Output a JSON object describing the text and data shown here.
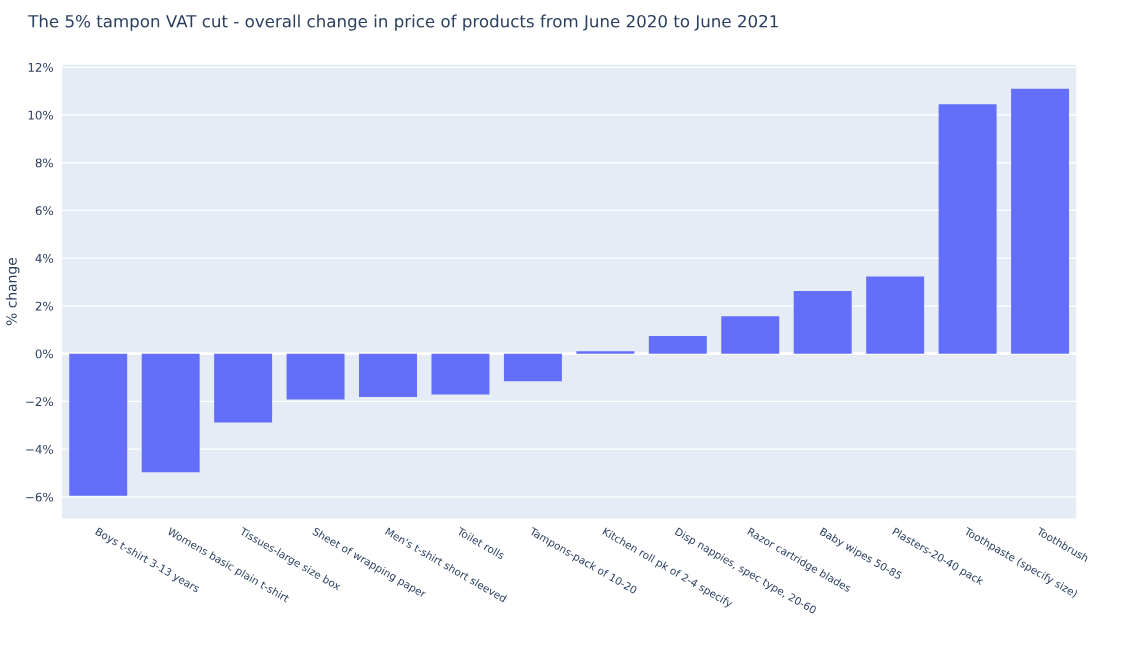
{
  "chart_data": {
    "type": "bar",
    "title": "The 5% tampon VAT cut - overall change in price of products from June 2020 to June 2021",
    "ylabel": "% change",
    "categories": [
      "Boys t-shirt 3-13 years",
      "Womens basic plain t-shirt",
      "Tissues-large size box",
      "Sheet of wrapping paper",
      "Men's t-shirt short sleeved",
      "Toilet rolls",
      "Tampons-pack of 10-20",
      "Kitchen roll pk of 2-4 specify",
      "Disp nappies, spec type, 20-60",
      "Razor cartridge blades",
      "Baby wipes 50-85",
      "Plasters-20-40 pack",
      "Toothpaste (specify size)",
      "Toothbrush"
    ],
    "values": [
      -5.95,
      -4.97,
      -2.88,
      -1.92,
      -1.82,
      -1.71,
      -1.15,
      0.1,
      0.74,
      1.57,
      2.63,
      3.23,
      10.45,
      11.1
    ],
    "color": "#636efa",
    "ylim": [
      -6.9,
      12.1
    ],
    "yticks": [
      {
        "value": -6,
        "label": "−6%"
      },
      {
        "value": -4,
        "label": "−4%"
      },
      {
        "value": -2,
        "label": "−2%"
      },
      {
        "value": 0,
        "label": "0%"
      },
      {
        "value": 2,
        "label": "2%"
      },
      {
        "value": 4,
        "label": "4%"
      },
      {
        "value": 6,
        "label": "6%"
      },
      {
        "value": 8,
        "label": "8%"
      },
      {
        "value": 10,
        "label": "10%"
      },
      {
        "value": 12,
        "label": "12%"
      }
    ],
    "grid": "y"
  }
}
